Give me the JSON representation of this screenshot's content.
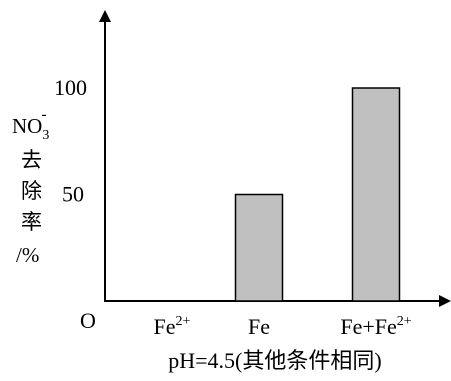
{
  "chart_data": {
    "type": "bar",
    "title": "",
    "categories": [
      "Fe2+",
      "Fe",
      "Fe+Fe2+"
    ],
    "category_labels": [
      {
        "base": "Fe",
        "sup": "2+"
      },
      {
        "base": "Fe",
        "sup": ""
      },
      {
        "base": "Fe+Fe",
        "sup": "2+"
      }
    ],
    "values": [
      0,
      50,
      100
    ],
    "y_ticks": [
      "50",
      "100"
    ],
    "y_tick_values": [
      50,
      100
    ],
    "origin_label": "O",
    "ylim": [
      0,
      100
    ],
    "ylabel": {
      "species_base": "NO",
      "species_sub": "3",
      "species_sup": "-",
      "chars": [
        "去",
        "除",
        "率"
      ],
      "unit": "/%"
    },
    "xlabel": "pH=4.5(其他条件相同)",
    "grid": false,
    "legend": "none",
    "colors": {
      "bar_fill": "#c0c0c0",
      "bar_stroke": "#000000",
      "axis": "#000000"
    }
  }
}
